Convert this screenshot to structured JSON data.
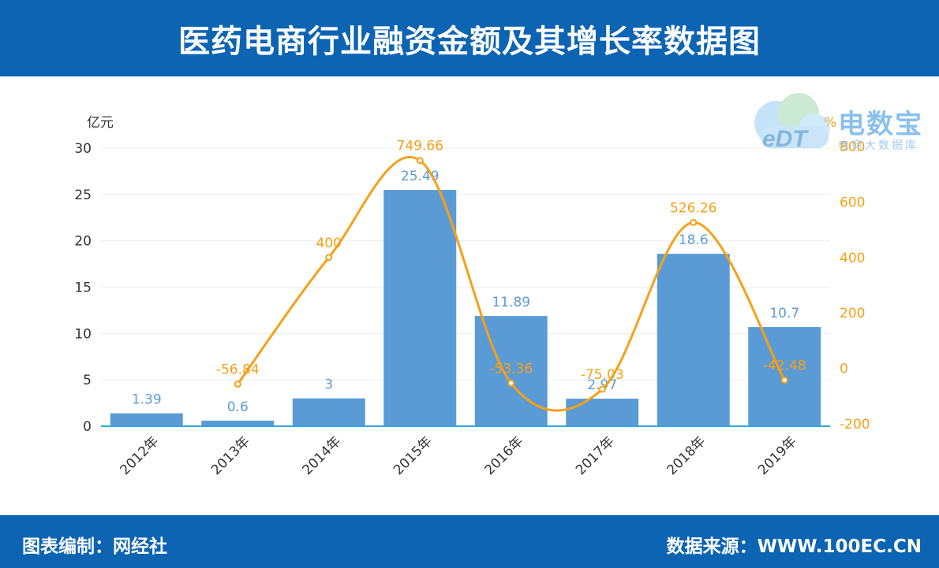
{
  "header": {
    "title": "医药电商行业融资金额及其增长率数据图"
  },
  "footer": {
    "left_label": "图表编制：网经社",
    "right_label": "数据来源：WWW.100EC.CN"
  },
  "watermark": {
    "brand": "电数宝",
    "tagline": "电商大数据库",
    "logo_text": "eDT"
  },
  "colors": {
    "bar": "#5b9bd5",
    "line": "#f6a018",
    "header_bg": "#0c64b3",
    "axis": "#2fa8e0"
  },
  "chart_data": {
    "type": "bar",
    "categories": [
      "2012年",
      "2013年",
      "2014年",
      "2015年",
      "2016年",
      "2017年",
      "2018年",
      "2019年"
    ],
    "series": [
      {
        "values": [
          1.39,
          0.6,
          3,
          25.49,
          11.89,
          2.97,
          18.6,
          10.7
        ],
        "axis": "left",
        "type": "bar"
      },
      {
        "values": [
          null,
          -56.84,
          400,
          749.66,
          -53.36,
          -75.03,
          526.26,
          -42.48
        ],
        "axis": "right",
        "type": "line",
        "smooth": true
      }
    ],
    "y_left": {
      "unit": "亿元",
      "ylim": [
        0,
        30
      ],
      "ticks": [
        0,
        5,
        10,
        15,
        20,
        25,
        30
      ]
    },
    "y_right": {
      "unit": "%",
      "ylim": [
        -200,
        800
      ],
      "ticks": [
        -200,
        0,
        200,
        400,
        600,
        800
      ]
    },
    "grid": true,
    "bar_labels": [
      "1.39",
      "0.6",
      "3",
      "25.49",
      "11.89",
      "2.97",
      "18.6",
      "10.7"
    ],
    "line_labels": [
      "",
      "-56.84",
      "400",
      "749.66",
      "-53.36",
      "-75.03",
      "526.26",
      "-42.48"
    ]
  }
}
